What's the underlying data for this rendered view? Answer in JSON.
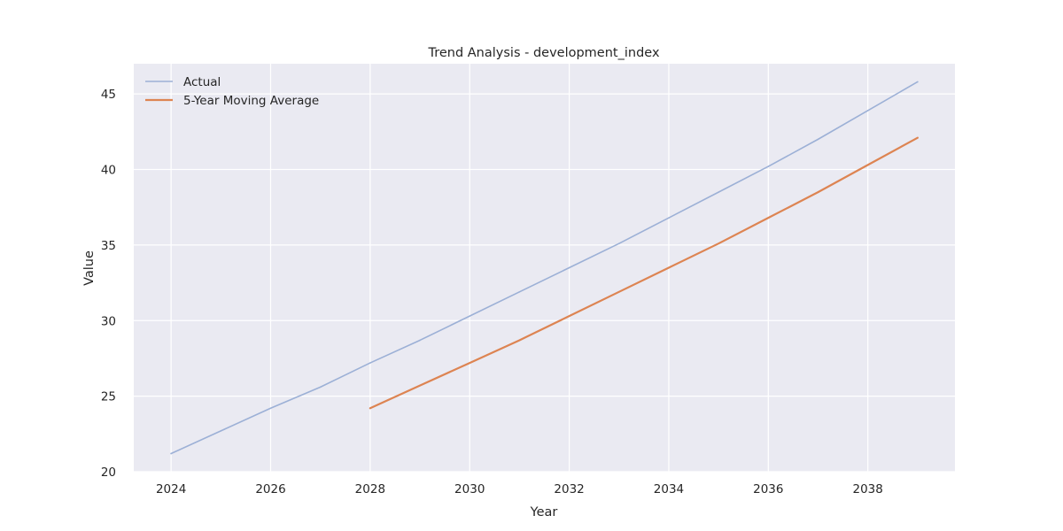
{
  "chart_data": {
    "type": "line",
    "title": "Trend Analysis - development_index",
    "xlabel": "Year",
    "ylabel": "Value",
    "xlim": [
      2023.25,
      2039.75
    ],
    "ylim": [
      20,
      47
    ],
    "x_ticks": [
      2024,
      2026,
      2028,
      2030,
      2032,
      2034,
      2036,
      2038
    ],
    "y_ticks": [
      20,
      25,
      30,
      35,
      40,
      45
    ],
    "grid": true,
    "legend_position": "top-left",
    "series": [
      {
        "name": "Actual",
        "color": "#9cb0d6",
        "x": [
          2024,
          2025,
          2026,
          2027,
          2028,
          2029,
          2030,
          2031,
          2032,
          2033,
          2034,
          2035,
          2036,
          2037,
          2038,
          2039
        ],
        "values": [
          21.2,
          22.7,
          24.2,
          25.6,
          27.2,
          28.7,
          30.3,
          31.9,
          33.5,
          35.1,
          36.8,
          38.5,
          40.2,
          42.0,
          43.9,
          45.8
        ]
      },
      {
        "name": "5-Year Moving Average",
        "color": "#dd8452",
        "x": [
          2028,
          2029,
          2030,
          2031,
          2032,
          2033,
          2034,
          2035,
          2036,
          2037,
          2038,
          2039
        ],
        "values": [
          24.2,
          25.7,
          27.2,
          28.7,
          30.3,
          31.9,
          33.5,
          35.1,
          36.8,
          38.5,
          40.3,
          42.1
        ]
      }
    ]
  }
}
